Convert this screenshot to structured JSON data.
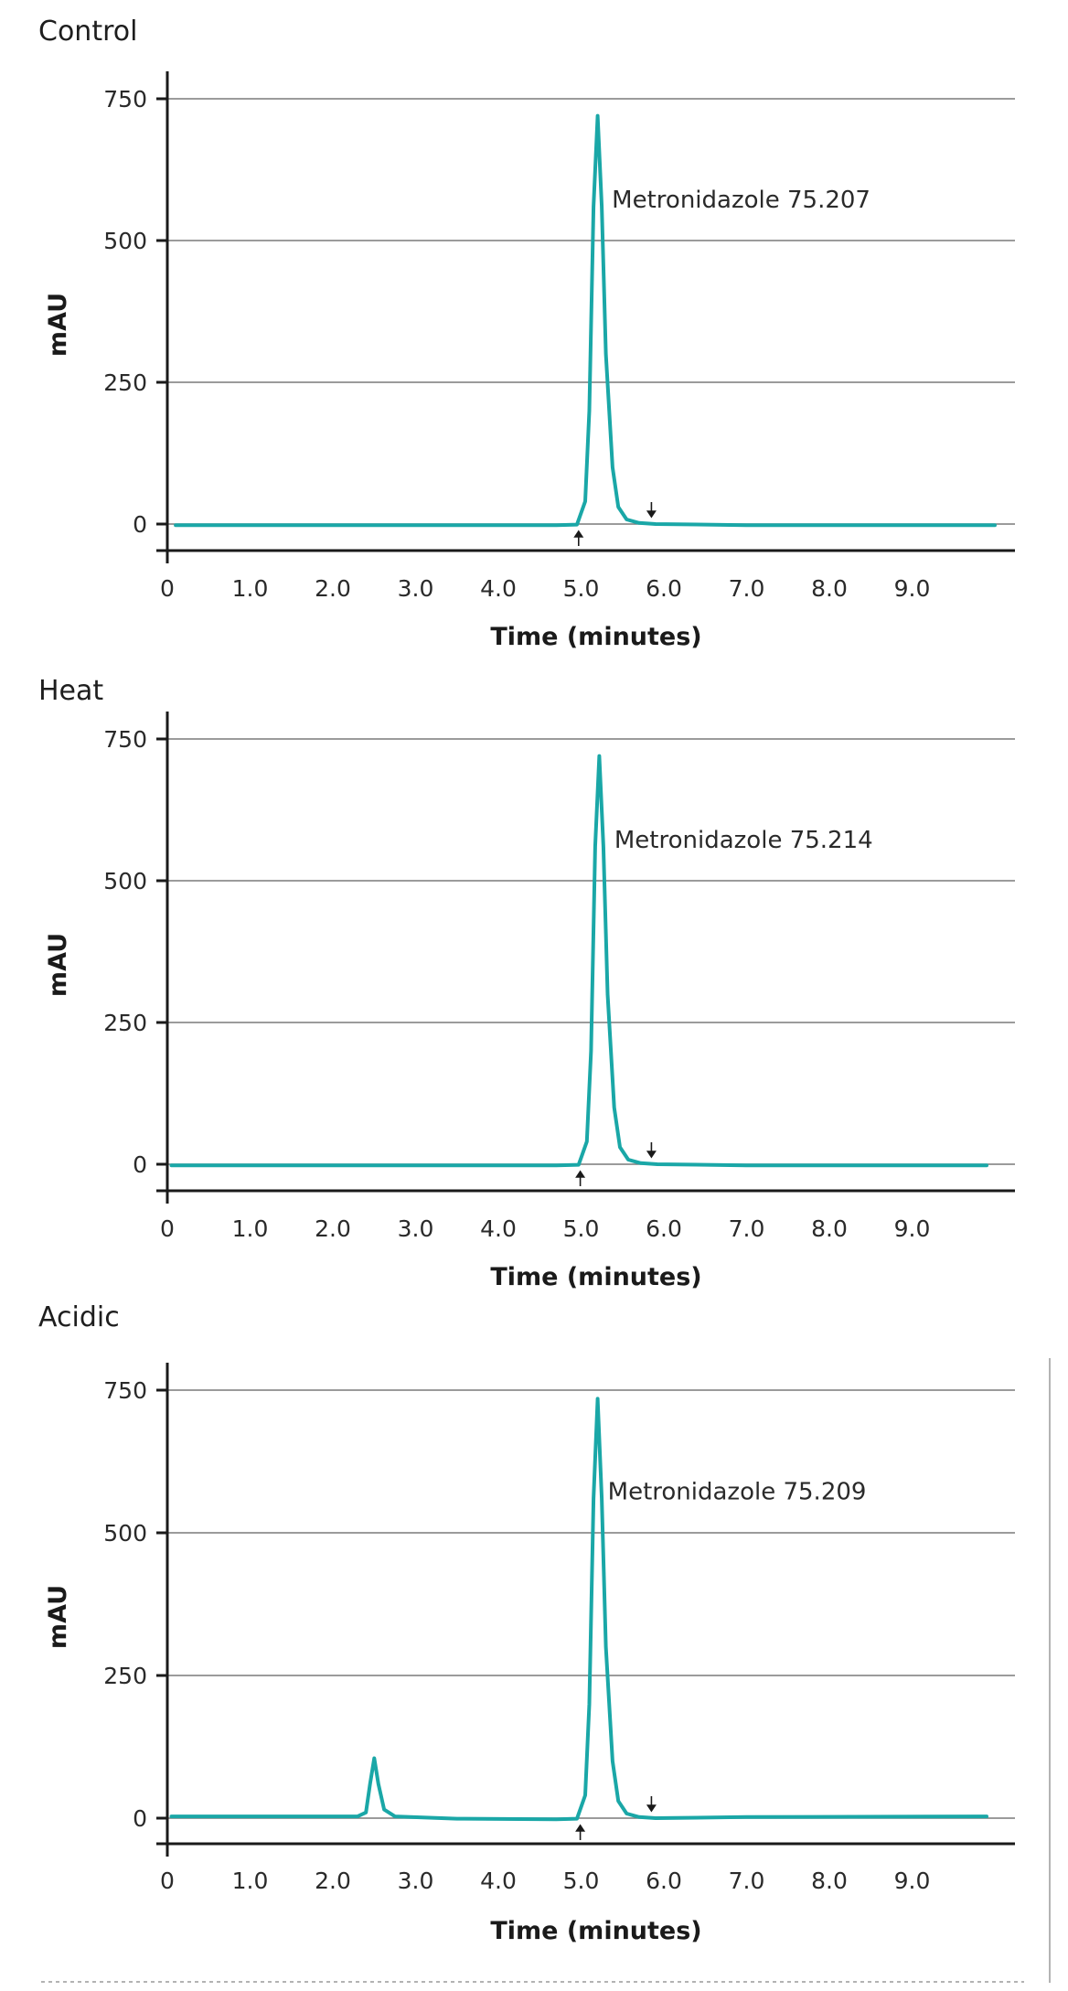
{
  "chart_data": [
    {
      "type": "line",
      "title": "Control",
      "xlabel": "Time (minutes)",
      "ylabel": "mAU",
      "xlim": [
        0,
        10.2
      ],
      "ylim": [
        -45,
        830
      ],
      "xticks": [
        0,
        1,
        2,
        3,
        4,
        5,
        6,
        7,
        8,
        9
      ],
      "xtick_labels": [
        "0",
        "1.0",
        "2.0",
        "3.0",
        "4.0",
        "5.0",
        "6.0",
        "7.0",
        "8.0",
        "9.0"
      ],
      "yticks": [
        0,
        250,
        500,
        750
      ],
      "ytick_labels": [
        "0",
        "250",
        "500",
        "750"
      ],
      "grid": true,
      "annotation": "Metronidazole 75.207",
      "annotation_at": [
        5.35,
        555
      ],
      "markers": [
        {
          "x": 4.97,
          "direction": "up"
        },
        {
          "x": 5.85,
          "direction": "down"
        }
      ],
      "series": [
        {
          "x": [
            0.1,
            4.7,
            4.95,
            5.05,
            5.1,
            5.15,
            5.2,
            5.25,
            5.3,
            5.38,
            5.45,
            5.55,
            5.7,
            5.9,
            7.0,
            10.0
          ],
          "y": [
            -2,
            -2,
            -1,
            40,
            200,
            560,
            720,
            560,
            300,
            100,
            30,
            8,
            2,
            0,
            -2,
            -2
          ]
        }
      ]
    },
    {
      "type": "line",
      "title": "Heat",
      "xlabel": "Time (minutes)",
      "ylabel": "mAU",
      "xlim": [
        0,
        10.2
      ],
      "ylim": [
        -45,
        830
      ],
      "xticks": [
        0,
        1,
        2,
        3,
        4,
        5,
        6,
        7,
        8,
        9
      ],
      "xtick_labels": [
        "0",
        "1.0",
        "2.0",
        "3.0",
        "4.0",
        "5.0",
        "6.0",
        "7.0",
        "8.0",
        "9.0"
      ],
      "yticks": [
        0,
        250,
        500,
        750
      ],
      "ytick_labels": [
        "0",
        "250",
        "500",
        "750"
      ],
      "grid": true,
      "annotation": "Metronidazole 75.214",
      "annotation_at": [
        5.38,
        555
      ],
      "markers": [
        {
          "x": 4.99,
          "direction": "up"
        },
        {
          "x": 5.85,
          "direction": "down"
        }
      ],
      "series": [
        {
          "x": [
            0.05,
            4.7,
            4.97,
            5.07,
            5.12,
            5.17,
            5.22,
            5.27,
            5.32,
            5.4,
            5.47,
            5.57,
            5.72,
            5.92,
            7.0,
            9.9
          ],
          "y": [
            -2,
            -2,
            -1,
            40,
            200,
            560,
            720,
            560,
            300,
            100,
            30,
            8,
            2,
            0,
            -2,
            -2
          ]
        }
      ]
    },
    {
      "type": "line",
      "title": "Acidic",
      "xlabel": "Time (minutes)",
      "ylabel": "mAU",
      "xlim": [
        0,
        10.2
      ],
      "ylim": [
        -45,
        830
      ],
      "xticks": [
        0,
        1,
        2,
        3,
        4,
        5,
        6,
        7,
        8,
        9
      ],
      "xtick_labels": [
        "0",
        "1.0",
        "2.0",
        "3.0",
        "4.0",
        "5.0",
        "6.0",
        "7.0",
        "8.0",
        "9.0"
      ],
      "yticks": [
        0,
        250,
        500,
        750
      ],
      "ytick_labels": [
        "0",
        "250",
        "500",
        "750"
      ],
      "grid": true,
      "annotation": "Metronidazole 75.209",
      "annotation_at": [
        5.3,
        555
      ],
      "markers": [
        {
          "x": 4.99,
          "direction": "up"
        },
        {
          "x": 5.85,
          "direction": "down"
        }
      ],
      "series": [
        {
          "x": [
            0.05,
            2.3,
            2.4,
            2.45,
            2.5,
            2.55,
            2.62,
            2.75,
            3.5,
            4.7,
            4.95,
            5.05,
            5.1,
            5.15,
            5.2,
            5.25,
            5.3,
            5.38,
            5.45,
            5.55,
            5.7,
            5.9,
            7.0,
            9.9
          ],
          "y": [
            3,
            3,
            10,
            60,
            105,
            60,
            15,
            3,
            -1,
            -2,
            -1,
            40,
            200,
            560,
            735,
            560,
            300,
            100,
            30,
            8,
            2,
            0,
            2,
            3
          ]
        }
      ]
    }
  ],
  "style": {
    "trace_color": "#1aa7a7",
    "axis_color": "#1a1a1a",
    "grid_color": "#7a7a7a"
  }
}
